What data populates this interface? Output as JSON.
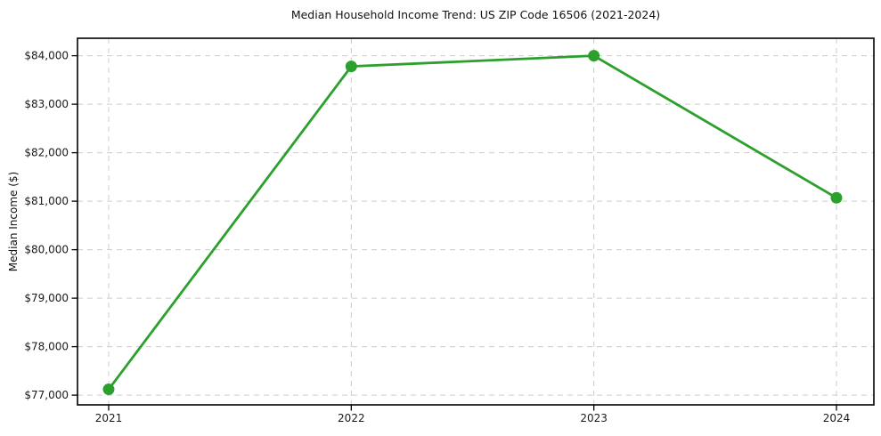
{
  "chart_data": {
    "type": "line",
    "title": "Median Household Income Trend: US ZIP Code 16506 (2021-2024)",
    "xlabel": "",
    "ylabel": "Median Income ($)",
    "categories": [
      "2021",
      "2022",
      "2023",
      "2024"
    ],
    "series": [
      {
        "name": "Median Household Income",
        "color": "#2ca02c",
        "values": [
          77120,
          83780,
          84000,
          81070
        ]
      }
    ],
    "ylim": [
      76800,
      84360
    ],
    "yticks": [
      77000,
      78000,
      79000,
      80000,
      81000,
      82000,
      83000,
      84000
    ],
    "ytick_labels": [
      "$77,000",
      "$78,000",
      "$79,000",
      "$80,000",
      "$81,000",
      "$82,000",
      "$83,000",
      "$84,000"
    ],
    "grid": "dashed",
    "legend_position": "none",
    "marker": "circle",
    "colors": {
      "background": "#ffffff",
      "text": "#1a1a1a",
      "grid": "#cccccc",
      "spine": "#000000",
      "line": "#2ca02c"
    }
  }
}
